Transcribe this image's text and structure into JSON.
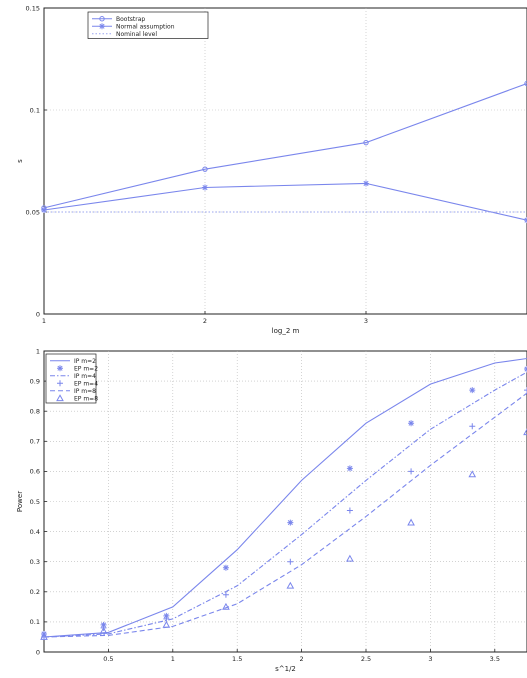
{
  "chart_data": [
    {
      "type": "line",
      "xlabel": "log_2 m",
      "ylabel": "s",
      "xlim": [
        1,
        4
      ],
      "ylim": [
        0,
        0.15
      ],
      "xticks": [
        "1",
        "2",
        "3"
      ],
      "yticks": [
        "0",
        "0.05",
        "0.1",
        "0.15"
      ],
      "grid": true,
      "legend": {
        "placement": "top-left"
      },
      "series": [
        {
          "name": "Bootstrap",
          "color": "#7a86ec",
          "marker": "circle",
          "dash": "solid",
          "x": [
            1,
            2,
            3,
            4
          ],
          "y": [
            0.052,
            0.071,
            0.084,
            0.113
          ]
        },
        {
          "name": "Normal assumption",
          "color": "#7a86ec",
          "marker": "star",
          "dash": "solid",
          "x": [
            1,
            2,
            3,
            4
          ],
          "y": [
            0.051,
            0.062,
            0.064,
            0.046
          ]
        },
        {
          "name": "Nominal level",
          "color": "#9aa4f0",
          "marker": "none",
          "dash": "dotted",
          "x": [
            1,
            4
          ],
          "y": [
            0.05,
            0.05
          ]
        }
      ]
    },
    {
      "type": "line",
      "xlabel": "s^1/2",
      "ylabel": "Power",
      "xlim": [
        0,
        3
      ],
      "ylim": [
        0,
        1
      ],
      "xticks": [
        "0.5",
        "1",
        "1.5",
        "2",
        "2.5",
        "3",
        "3.5"
      ],
      "yticks": [
        "0",
        "0.1",
        "0.2",
        "0.3",
        "0.4",
        "0.5",
        "0.6",
        "0.7",
        "0.8",
        "0.9",
        "1"
      ],
      "grid": true,
      "legend": {
        "placement": "top-left"
      },
      "series": [
        {
          "name": "IP m=2",
          "color": "#7a86ec",
          "dash": "solid",
          "marker": "none",
          "x": [
            0,
            0.4,
            0.8,
            1.2,
            1.6,
            2.0,
            2.4,
            2.8,
            3.0
          ],
          "y": [
            0.05,
            0.065,
            0.15,
            0.34,
            0.57,
            0.76,
            0.89,
            0.96,
            0.975
          ]
        },
        {
          "name": "EP m=2",
          "color": "#7a86ec",
          "dash": "none",
          "marker": "star",
          "x": [
            0,
            0.37,
            0.76,
            1.13,
            1.53,
            1.9,
            2.28,
            2.66,
            3.0
          ],
          "y": [
            0.06,
            0.09,
            0.12,
            0.28,
            0.43,
            0.61,
            0.76,
            0.87,
            0.94
          ]
        },
        {
          "name": "IP m=4",
          "color": "#7a86ec",
          "dash": "dashdot",
          "marker": "none",
          "x": [
            0,
            0.4,
            0.8,
            1.2,
            1.6,
            2.0,
            2.4,
            2.8,
            3.0
          ],
          "y": [
            0.05,
            0.06,
            0.11,
            0.22,
            0.39,
            0.57,
            0.74,
            0.87,
            0.93
          ]
        },
        {
          "name": "EP m=4",
          "color": "#7a86ec",
          "dash": "none",
          "marker": "plus",
          "x": [
            0,
            0.37,
            0.76,
            1.13,
            1.53,
            1.9,
            2.28,
            2.66,
            3.0
          ],
          "y": [
            0.05,
            0.08,
            0.11,
            0.19,
            0.3,
            0.47,
            0.6,
            0.75,
            0.87
          ]
        },
        {
          "name": "IP m=8",
          "color": "#7a86ec",
          "dash": "dashed",
          "marker": "none",
          "x": [
            0,
            0.4,
            0.8,
            1.2,
            1.6,
            2.0,
            2.4,
            2.8,
            3.0
          ],
          "y": [
            0.05,
            0.055,
            0.085,
            0.16,
            0.29,
            0.45,
            0.62,
            0.78,
            0.86
          ]
        },
        {
          "name": "EP m=8",
          "color": "#7a86ec",
          "dash": "none",
          "marker": "triangle",
          "x": [
            0,
            0.37,
            0.76,
            1.13,
            1.53,
            1.9,
            2.28,
            2.66,
            3.0
          ],
          "y": [
            0.05,
            0.07,
            0.09,
            0.15,
            0.22,
            0.31,
            0.43,
            0.59,
            0.73
          ]
        }
      ]
    }
  ]
}
